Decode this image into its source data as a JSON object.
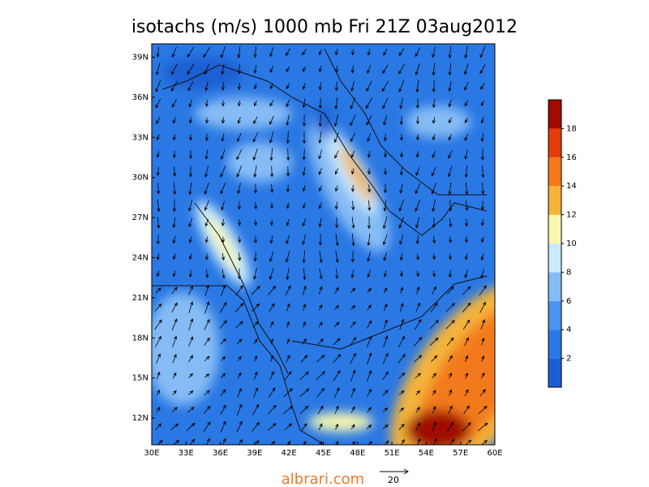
{
  "map": {
    "title": "isotachs (m/s) 1000 mb Fri 21Z 03aug2012",
    "xlim": [
      30,
      60
    ],
    "ylim": [
      10,
      40
    ],
    "xticks": [
      {
        "value": 30,
        "label": "30E"
      },
      {
        "value": 33,
        "label": "33E"
      },
      {
        "value": 36,
        "label": "36E"
      },
      {
        "value": 39,
        "label": "39E"
      },
      {
        "value": 42,
        "label": "42E"
      },
      {
        "value": 45,
        "label": "45E"
      },
      {
        "value": 48,
        "label": "48E"
      },
      {
        "value": 51,
        "label": "51E"
      },
      {
        "value": 54,
        "label": "54E"
      },
      {
        "value": 57,
        "label": "57E"
      },
      {
        "value": 60,
        "label": "60E"
      }
    ],
    "yticks": [
      {
        "value": 12,
        "label": "12N"
      },
      {
        "value": 15,
        "label": "15N"
      },
      {
        "value": 18,
        "label": "18N"
      },
      {
        "value": 21,
        "label": "21N"
      },
      {
        "value": 24,
        "label": "24N"
      },
      {
        "value": 27,
        "label": "27N"
      },
      {
        "value": 30,
        "label": "30N"
      },
      {
        "value": 33,
        "label": "33N"
      },
      {
        "value": 36,
        "label": "36N"
      },
      {
        "value": 39,
        "label": "39N"
      }
    ],
    "colorbar": {
      "lim": [
        0,
        20
      ],
      "ticks": [
        2,
        4,
        6,
        8,
        10,
        12,
        14,
        16,
        18
      ],
      "colors": [
        "#1c5fd2",
        "#2a78e4",
        "#4b93f0",
        "#86bcf5",
        "#c8eafc",
        "#f7f7b0",
        "#f4b43a",
        "#f37a1a",
        "#e23c0c",
        "#a00a00"
      ]
    },
    "reference_vector": "20",
    "footer": "albrari.com"
  }
}
